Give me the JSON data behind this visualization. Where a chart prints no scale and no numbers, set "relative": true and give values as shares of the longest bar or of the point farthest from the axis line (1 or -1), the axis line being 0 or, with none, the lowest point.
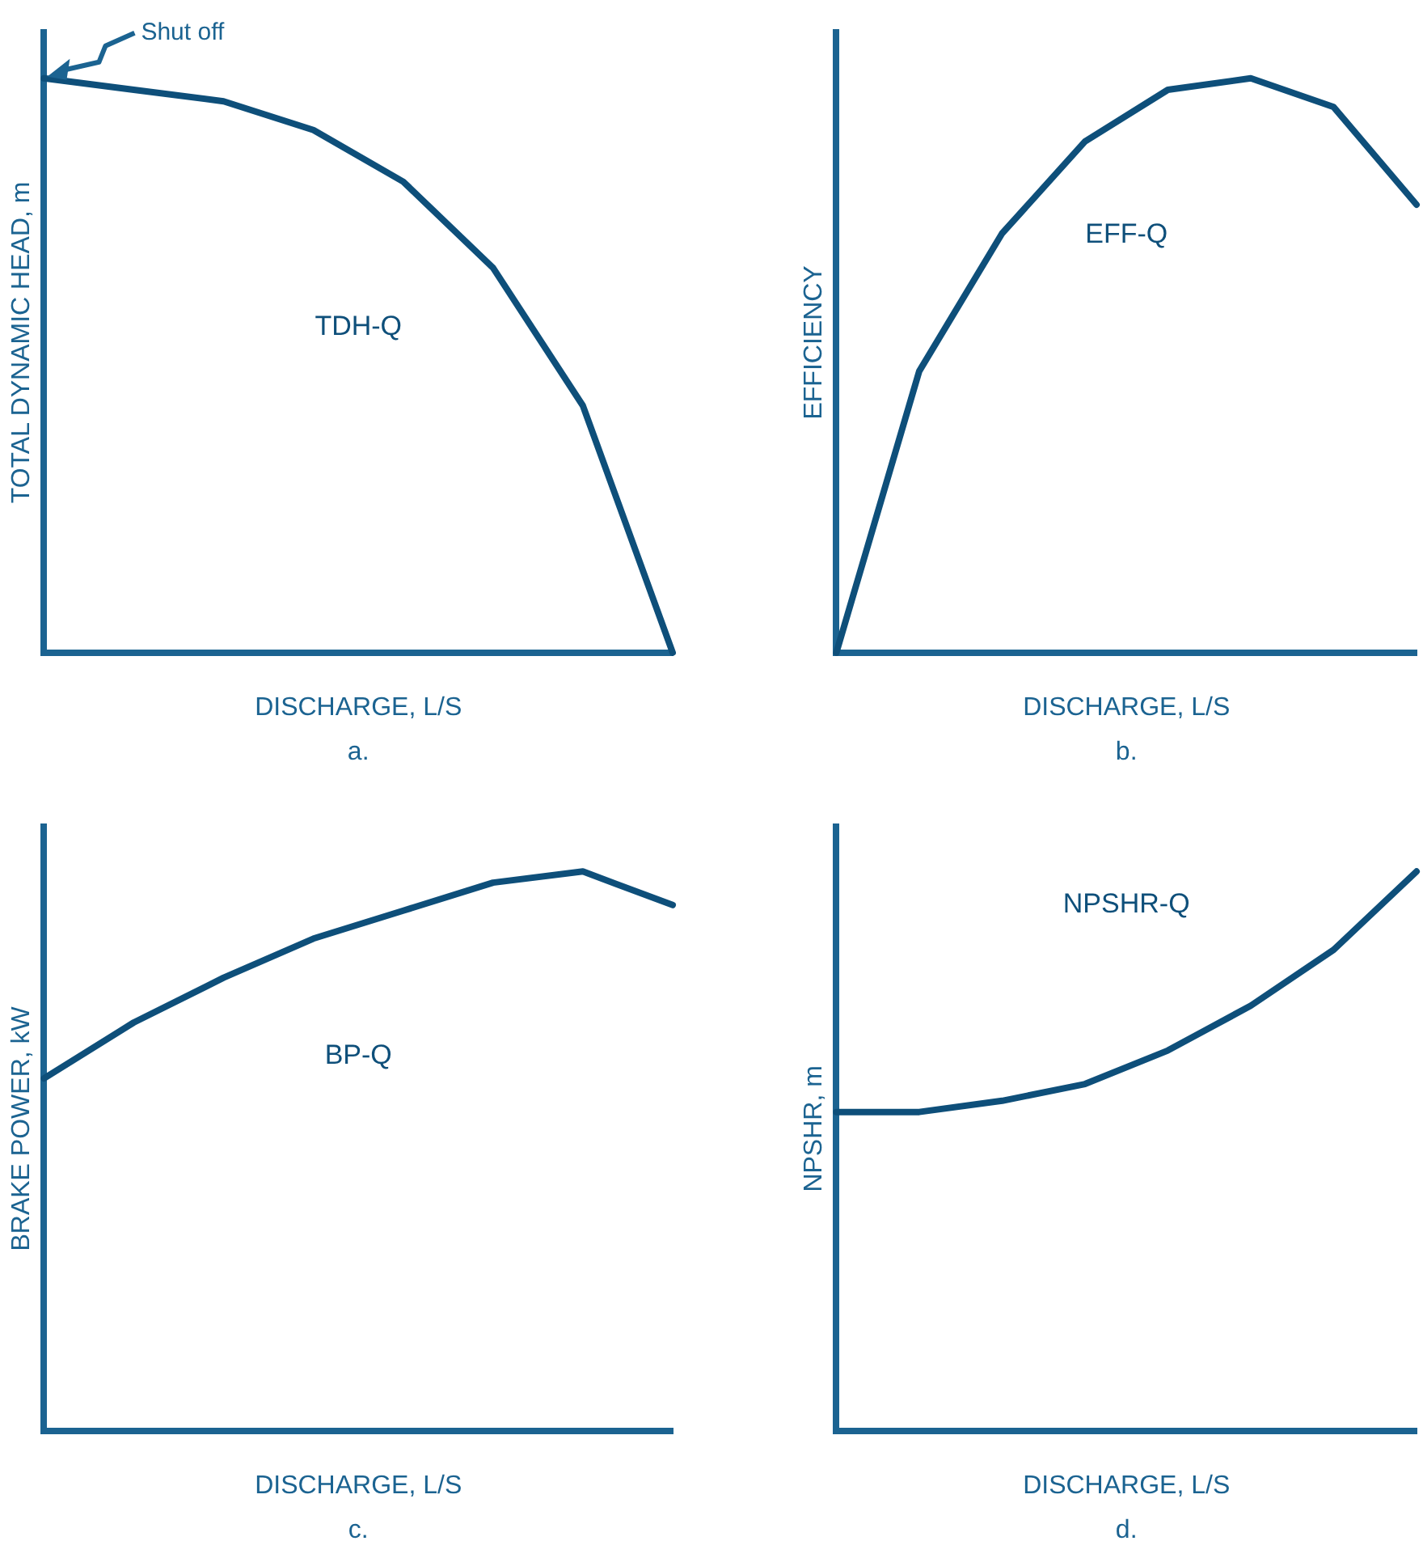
{
  "chart_data": [
    {
      "type": "line",
      "relative": true,
      "xlabel": "DISCHARGE, L/S",
      "ylabel": "TOTAL DYNAMIC HEAD, m",
      "categories": [
        null,
        null,
        null,
        null,
        null,
        null,
        null,
        null
      ],
      "series": [
        {
          "name": "TDH-Q",
          "color": "#0e4f7a",
          "values": [
            1.0,
            0.98,
            0.96,
            0.91,
            0.82,
            0.67,
            0.43,
            0
          ]
        }
      ],
      "annotations": [
        "Shut off",
        "a."
      ],
      "legend": false,
      "grid": false,
      "marker": "none",
      "line_style": "solid"
    },
    {
      "type": "line",
      "relative": true,
      "xlabel": "DISCHARGE, L/S",
      "ylabel": "EFFICIENCY",
      "categories": [
        null,
        null,
        null,
        null,
        null,
        null,
        null,
        null
      ],
      "series": [
        {
          "name": "EFF-Q",
          "color": "#0e4f7a",
          "values": [
            0,
            0.49,
            0.73,
            0.89,
            0.98,
            1.0,
            0.95,
            0.78
          ]
        }
      ],
      "annotations": [
        "b."
      ],
      "legend": false,
      "grid": false,
      "marker": "none",
      "line_style": "solid"
    },
    {
      "type": "line",
      "relative": true,
      "xlabel": "DISCHARGE, L/S",
      "ylabel": "BRAKE POWER, kW",
      "categories": [
        null,
        null,
        null,
        null,
        null,
        null,
        null,
        null
      ],
      "series": [
        {
          "name": "BP-Q",
          "color": "#0e4f7a",
          "values": [
            0.63,
            0.73,
            0.81,
            0.88,
            0.93,
            0.98,
            1.0,
            0.94
          ]
        }
      ],
      "annotations": [
        "c."
      ],
      "legend": false,
      "grid": false,
      "marker": "none",
      "line_style": "solid"
    },
    {
      "type": "line",
      "relative": true,
      "xlabel": "DISCHARGE, L/S",
      "ylabel": "NPSHR, m",
      "categories": [
        null,
        null,
        null,
        null,
        null,
        null,
        null,
        null
      ],
      "series": [
        {
          "name": "NPSHR-Q",
          "color": "#0e4f7a",
          "values": [
            0.57,
            0.57,
            0.59,
            0.62,
            0.68,
            0.76,
            0.86,
            1.0
          ]
        }
      ],
      "annotations": [
        "d."
      ],
      "legend": false,
      "grid": false,
      "marker": "none",
      "line_style": "solid"
    }
  ]
}
